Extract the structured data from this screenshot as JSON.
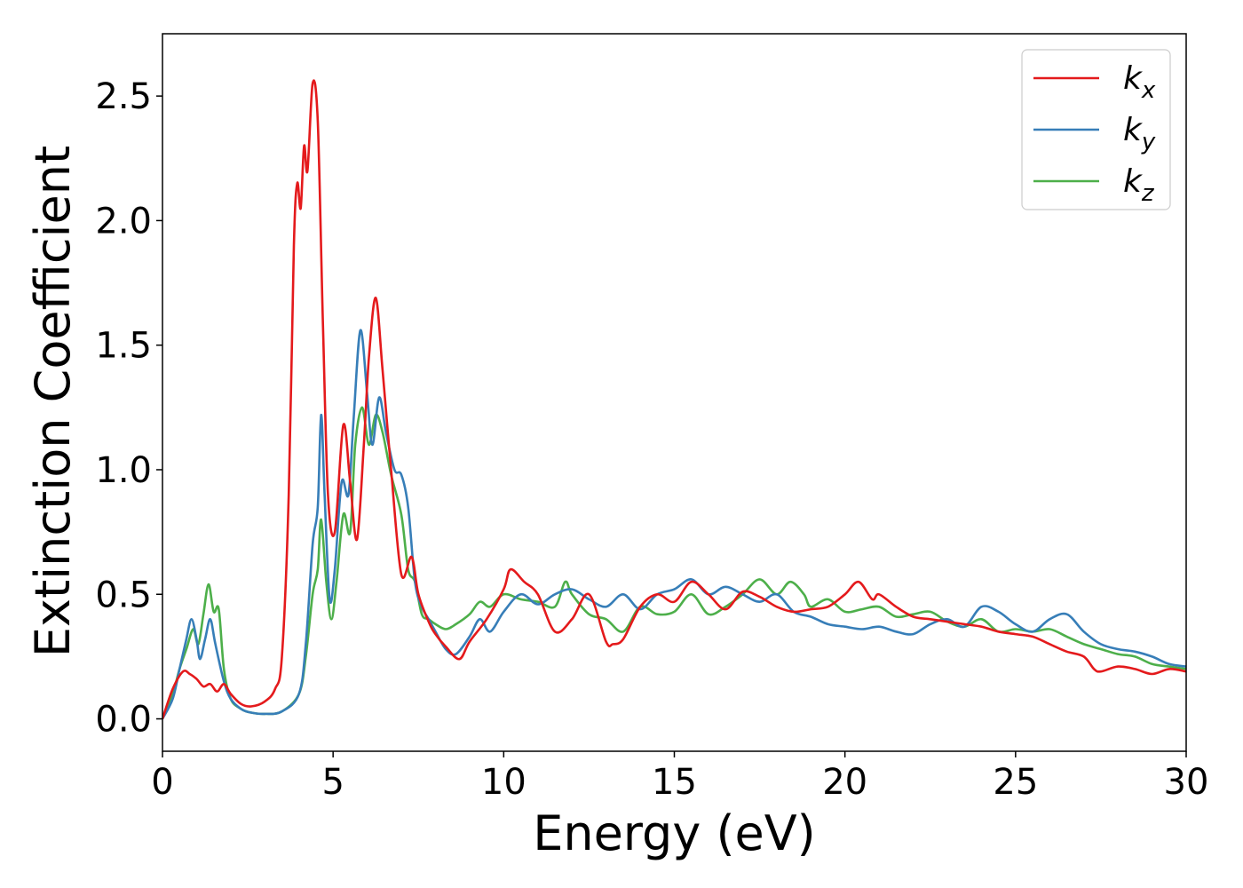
{
  "chart_data": {
    "type": "line",
    "title": "",
    "xlabel": "Energy (eV)",
    "ylabel": "Extinction Coefficient",
    "xlim": [
      0,
      30
    ],
    "ylim": [
      -0.13,
      2.75
    ],
    "xticks": [
      0,
      5,
      10,
      15,
      20,
      25,
      30
    ],
    "xtick_labels": [
      "0",
      "5",
      "10",
      "15",
      "20",
      "25",
      "30"
    ],
    "yticks": [
      0.0,
      0.5,
      1.0,
      1.5,
      2.0,
      2.5
    ],
    "ytick_labels": [
      "0.0",
      "0.5",
      "1.0",
      "1.5",
      "2.0",
      "2.5"
    ],
    "grid": false,
    "legend_position": "top-right",
    "series": [
      {
        "name": "k_x",
        "label_main": "k",
        "label_sub": "x",
        "color": "#e41a1c",
        "x": [
          0,
          0.3,
          0.6,
          0.8,
          1.0,
          1.2,
          1.4,
          1.6,
          1.8,
          2.0,
          2.3,
          2.6,
          3.0,
          3.3,
          3.5,
          3.7,
          3.85,
          3.95,
          4.05,
          4.15,
          4.25,
          4.4,
          4.55,
          4.7,
          4.85,
          5.05,
          5.3,
          5.5,
          5.7,
          5.9,
          6.05,
          6.25,
          6.45,
          6.7,
          7.0,
          7.3,
          7.5,
          7.8,
          8.0,
          8.3,
          8.7,
          9.0,
          9.5,
          10.0,
          10.2,
          10.6,
          11.0,
          11.5,
          12.0,
          12.5,
          13.0,
          13.2,
          13.5,
          14.0,
          14.5,
          15.0,
          15.5,
          16.0,
          16.5,
          17.0,
          17.5,
          18.0,
          18.5,
          19.0,
          19.5,
          20.0,
          20.4,
          20.8,
          21.0,
          21.5,
          22.0,
          22.5,
          23.0,
          23.5,
          24.0,
          24.5,
          25.0,
          25.5,
          26.0,
          26.5,
          27.0,
          27.3,
          27.5,
          28.0,
          28.5,
          29.0,
          29.5,
          30.0
        ],
        "y": [
          0.0,
          0.12,
          0.19,
          0.18,
          0.16,
          0.13,
          0.14,
          0.11,
          0.14,
          0.1,
          0.06,
          0.05,
          0.07,
          0.12,
          0.25,
          0.9,
          1.9,
          2.15,
          2.05,
          2.3,
          2.2,
          2.55,
          2.4,
          1.6,
          0.9,
          0.75,
          1.18,
          0.95,
          0.72,
          1.1,
          1.45,
          1.69,
          1.4,
          1.0,
          0.58,
          0.65,
          0.5,
          0.39,
          0.34,
          0.29,
          0.24,
          0.31,
          0.4,
          0.52,
          0.6,
          0.55,
          0.5,
          0.35,
          0.4,
          0.5,
          0.31,
          0.3,
          0.32,
          0.45,
          0.5,
          0.47,
          0.55,
          0.5,
          0.44,
          0.51,
          0.49,
          0.45,
          0.43,
          0.44,
          0.45,
          0.5,
          0.55,
          0.48,
          0.5,
          0.45,
          0.41,
          0.4,
          0.39,
          0.38,
          0.37,
          0.35,
          0.34,
          0.33,
          0.3,
          0.27,
          0.25,
          0.2,
          0.19,
          0.21,
          0.2,
          0.18,
          0.2,
          0.19
        ]
      },
      {
        "name": "k_y",
        "label_main": "k",
        "label_sub": "y",
        "color": "#377eb8",
        "x": [
          0,
          0.3,
          0.5,
          0.7,
          0.85,
          1.0,
          1.1,
          1.25,
          1.4,
          1.55,
          1.8,
          2.0,
          2.3,
          2.6,
          3.0,
          3.5,
          4.0,
          4.2,
          4.4,
          4.55,
          4.65,
          4.75,
          4.9,
          5.05,
          5.25,
          5.45,
          5.6,
          5.8,
          6.0,
          6.15,
          6.35,
          6.55,
          6.8,
          7.0,
          7.2,
          7.4,
          7.6,
          7.8,
          8.0,
          8.3,
          8.6,
          9.0,
          9.3,
          9.6,
          10.0,
          10.5,
          11.0,
          11.5,
          12.0,
          12.5,
          13.0,
          13.5,
          14.0,
          14.5,
          15.0,
          15.5,
          16.0,
          16.5,
          17.0,
          17.5,
          18.0,
          18.5,
          19.0,
          19.5,
          20.0,
          20.5,
          21.0,
          21.5,
          22.0,
          22.5,
          23.0,
          23.5,
          24.0,
          24.5,
          25.0,
          25.5,
          26.0,
          26.5,
          27.0,
          27.5,
          28.0,
          28.5,
          29.0,
          29.5,
          30.0
        ],
        "y": [
          0.0,
          0.08,
          0.2,
          0.32,
          0.4,
          0.32,
          0.24,
          0.32,
          0.4,
          0.3,
          0.15,
          0.08,
          0.04,
          0.025,
          0.02,
          0.03,
          0.1,
          0.3,
          0.7,
          0.85,
          1.22,
          0.9,
          0.48,
          0.6,
          0.95,
          0.9,
          1.2,
          1.56,
          1.3,
          1.1,
          1.29,
          1.15,
          1.0,
          0.98,
          0.85,
          0.55,
          0.45,
          0.4,
          0.35,
          0.28,
          0.26,
          0.33,
          0.4,
          0.35,
          0.43,
          0.5,
          0.46,
          0.5,
          0.52,
          0.48,
          0.45,
          0.5,
          0.44,
          0.5,
          0.52,
          0.56,
          0.5,
          0.53,
          0.5,
          0.47,
          0.5,
          0.43,
          0.41,
          0.38,
          0.37,
          0.36,
          0.37,
          0.35,
          0.34,
          0.38,
          0.4,
          0.37,
          0.45,
          0.43,
          0.38,
          0.35,
          0.4,
          0.42,
          0.35,
          0.3,
          0.28,
          0.27,
          0.25,
          0.22,
          0.21
        ]
      },
      {
        "name": "k_z",
        "label_main": "k",
        "label_sub": "z",
        "color": "#4daf4a",
        "x": [
          0,
          0.3,
          0.5,
          0.7,
          0.9,
          1.05,
          1.2,
          1.35,
          1.5,
          1.65,
          1.8,
          2.0,
          2.3,
          2.6,
          3.0,
          3.5,
          4.0,
          4.2,
          4.4,
          4.55,
          4.65,
          4.8,
          4.95,
          5.1,
          5.3,
          5.5,
          5.65,
          5.85,
          6.05,
          6.25,
          6.45,
          6.7,
          7.0,
          7.2,
          7.4,
          7.6,
          7.8,
          8.0,
          8.3,
          8.6,
          9.0,
          9.3,
          9.6,
          10.0,
          10.5,
          11.0,
          11.5,
          11.8,
          12.0,
          12.5,
          13.0,
          13.5,
          14.0,
          14.5,
          15.0,
          15.5,
          16.0,
          16.5,
          17.0,
          17.5,
          18.0,
          18.4,
          18.8,
          19.0,
          19.5,
          20.0,
          20.5,
          21.0,
          21.5,
          22.0,
          22.5,
          23.0,
          23.5,
          24.0,
          24.5,
          25.0,
          25.5,
          26.0,
          26.5,
          27.0,
          27.5,
          28.0,
          28.5,
          29.0,
          29.5,
          30.0
        ],
        "y": [
          0.0,
          0.1,
          0.2,
          0.28,
          0.36,
          0.3,
          0.42,
          0.54,
          0.43,
          0.44,
          0.2,
          0.08,
          0.04,
          0.025,
          0.02,
          0.03,
          0.1,
          0.25,
          0.5,
          0.6,
          0.8,
          0.55,
          0.4,
          0.55,
          0.82,
          0.75,
          1.1,
          1.25,
          1.1,
          1.22,
          1.15,
          0.98,
          0.82,
          0.6,
          0.55,
          0.42,
          0.4,
          0.38,
          0.36,
          0.38,
          0.42,
          0.47,
          0.45,
          0.5,
          0.48,
          0.47,
          0.45,
          0.55,
          0.5,
          0.42,
          0.4,
          0.35,
          0.45,
          0.42,
          0.43,
          0.5,
          0.42,
          0.45,
          0.5,
          0.56,
          0.5,
          0.55,
          0.5,
          0.45,
          0.48,
          0.43,
          0.44,
          0.45,
          0.41,
          0.42,
          0.43,
          0.39,
          0.37,
          0.4,
          0.35,
          0.36,
          0.35,
          0.36,
          0.33,
          0.3,
          0.28,
          0.26,
          0.25,
          0.22,
          0.21,
          0.2
        ]
      }
    ]
  }
}
